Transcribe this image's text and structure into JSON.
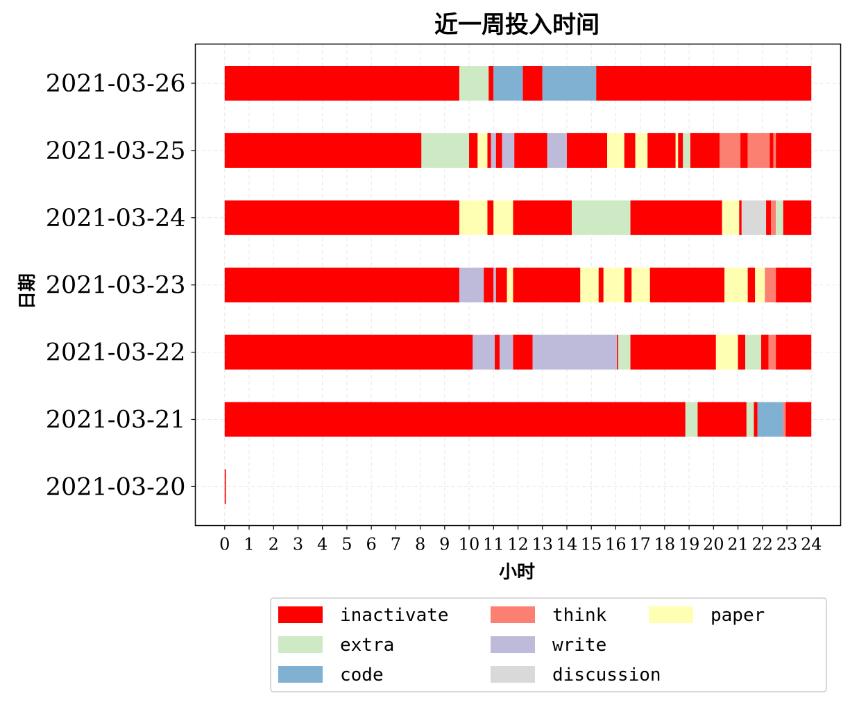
{
  "chart_data": {
    "type": "bar",
    "orientation": "horizontal-stacked-timeline",
    "title": "近一周投入时间",
    "xlabel": "小时",
    "ylabel": "日期",
    "xlim": [
      -1.2,
      25.2
    ],
    "xticks": [
      0,
      1,
      2,
      3,
      4,
      5,
      6,
      7,
      8,
      9,
      10,
      11,
      12,
      13,
      14,
      15,
      16,
      17,
      18,
      19,
      20,
      21,
      22,
      23,
      24
    ],
    "grid": true,
    "legend_position": "bottom",
    "legend": [
      {
        "name": "inactivate",
        "color": "#ff0000"
      },
      {
        "name": "extra",
        "color": "#cdeac5"
      },
      {
        "name": "code",
        "color": "#80b1d3"
      },
      {
        "name": "think",
        "color": "#fb8072"
      },
      {
        "name": "write",
        "color": "#bebada"
      },
      {
        "name": "discussion",
        "color": "#d9d9d9"
      },
      {
        "name": "paper",
        "color": "#ffffb3"
      }
    ],
    "categories": [
      "2021-03-26",
      "2021-03-25",
      "2021-03-24",
      "2021-03-23",
      "2021-03-22",
      "2021-03-21",
      "2021-03-20"
    ],
    "rows": [
      {
        "date": "2021-03-26",
        "segments": [
          {
            "type": "inactivate",
            "start": 0,
            "end": 9.6
          },
          {
            "type": "extra",
            "start": 9.6,
            "end": 10.8
          },
          {
            "type": "inactivate",
            "start": 10.8,
            "end": 11.0
          },
          {
            "type": "code",
            "start": 11.0,
            "end": 12.2
          },
          {
            "type": "inactivate",
            "start": 12.2,
            "end": 13.0
          },
          {
            "type": "code",
            "start": 13.0,
            "end": 15.2
          },
          {
            "type": "inactivate",
            "start": 15.2,
            "end": 24.0
          }
        ]
      },
      {
        "date": "2021-03-25",
        "segments": [
          {
            "type": "inactivate",
            "start": 0,
            "end": 8.05
          },
          {
            "type": "extra",
            "start": 8.05,
            "end": 10.0
          },
          {
            "type": "inactivate",
            "start": 10.0,
            "end": 10.35
          },
          {
            "type": "paper",
            "start": 10.35,
            "end": 10.75
          },
          {
            "type": "inactivate",
            "start": 10.75,
            "end": 10.9
          },
          {
            "type": "write",
            "start": 10.9,
            "end": 11.1
          },
          {
            "type": "inactivate",
            "start": 11.1,
            "end": 11.35
          },
          {
            "type": "write",
            "start": 11.35,
            "end": 11.85
          },
          {
            "type": "inactivate",
            "start": 11.85,
            "end": 13.2
          },
          {
            "type": "write",
            "start": 13.2,
            "end": 14.0
          },
          {
            "type": "inactivate",
            "start": 14.0,
            "end": 15.65
          },
          {
            "type": "paper",
            "start": 15.65,
            "end": 16.35
          },
          {
            "type": "inactivate",
            "start": 16.35,
            "end": 16.8
          },
          {
            "type": "paper",
            "start": 16.8,
            "end": 17.3
          },
          {
            "type": "inactivate",
            "start": 17.3,
            "end": 18.45
          },
          {
            "type": "paper",
            "start": 18.45,
            "end": 18.55
          },
          {
            "type": "inactivate",
            "start": 18.55,
            "end": 18.75
          },
          {
            "type": "extra",
            "start": 18.75,
            "end": 19.05
          },
          {
            "type": "inactivate",
            "start": 19.05,
            "end": 20.25
          },
          {
            "type": "think",
            "start": 20.25,
            "end": 21.1
          },
          {
            "type": "inactivate",
            "start": 21.1,
            "end": 21.4
          },
          {
            "type": "think",
            "start": 21.4,
            "end": 22.3
          },
          {
            "type": "inactivate",
            "start": 22.3,
            "end": 22.45
          },
          {
            "type": "think",
            "start": 22.45,
            "end": 22.55
          },
          {
            "type": "inactivate",
            "start": 22.55,
            "end": 24.0
          }
        ]
      },
      {
        "date": "2021-03-24",
        "segments": [
          {
            "type": "inactivate",
            "start": 0,
            "end": 9.6
          },
          {
            "type": "paper",
            "start": 9.6,
            "end": 10.75
          },
          {
            "type": "inactivate",
            "start": 10.75,
            "end": 11.0
          },
          {
            "type": "paper",
            "start": 11.0,
            "end": 11.8
          },
          {
            "type": "inactivate",
            "start": 11.8,
            "end": 14.2
          },
          {
            "type": "extra",
            "start": 14.2,
            "end": 16.6
          },
          {
            "type": "inactivate",
            "start": 16.6,
            "end": 20.35
          },
          {
            "type": "paper",
            "start": 20.35,
            "end": 21.05
          },
          {
            "type": "inactivate",
            "start": 21.05,
            "end": 21.15
          },
          {
            "type": "discussion",
            "start": 21.15,
            "end": 22.15
          },
          {
            "type": "inactivate",
            "start": 22.15,
            "end": 22.35
          },
          {
            "type": "think",
            "start": 22.35,
            "end": 22.55
          },
          {
            "type": "extra",
            "start": 22.55,
            "end": 22.85
          },
          {
            "type": "inactivate",
            "start": 22.85,
            "end": 24.0
          }
        ]
      },
      {
        "date": "2021-03-23",
        "segments": [
          {
            "type": "inactivate",
            "start": 0,
            "end": 9.6
          },
          {
            "type": "write",
            "start": 9.6,
            "end": 10.6
          },
          {
            "type": "inactivate",
            "start": 10.6,
            "end": 11.0
          },
          {
            "type": "write",
            "start": 11.0,
            "end": 11.1
          },
          {
            "type": "inactivate",
            "start": 11.1,
            "end": 11.55
          },
          {
            "type": "paper",
            "start": 11.55,
            "end": 11.8
          },
          {
            "type": "inactivate",
            "start": 11.8,
            "end": 14.55
          },
          {
            "type": "paper",
            "start": 14.55,
            "end": 15.3
          },
          {
            "type": "inactivate",
            "start": 15.3,
            "end": 15.5
          },
          {
            "type": "paper",
            "start": 15.5,
            "end": 16.35
          },
          {
            "type": "inactivate",
            "start": 16.35,
            "end": 16.65
          },
          {
            "type": "paper",
            "start": 16.65,
            "end": 17.4
          },
          {
            "type": "inactivate",
            "start": 17.4,
            "end": 20.45
          },
          {
            "type": "paper",
            "start": 20.45,
            "end": 21.4
          },
          {
            "type": "inactivate",
            "start": 21.4,
            "end": 21.7
          },
          {
            "type": "paper",
            "start": 21.7,
            "end": 22.1
          },
          {
            "type": "think",
            "start": 22.1,
            "end": 22.55
          },
          {
            "type": "inactivate",
            "start": 22.55,
            "end": 24.0
          }
        ]
      },
      {
        "date": "2021-03-22",
        "segments": [
          {
            "type": "inactivate",
            "start": 0,
            "end": 10.15
          },
          {
            "type": "write",
            "start": 10.15,
            "end": 11.05
          },
          {
            "type": "inactivate",
            "start": 11.05,
            "end": 11.25
          },
          {
            "type": "write",
            "start": 11.25,
            "end": 11.8
          },
          {
            "type": "inactivate",
            "start": 11.8,
            "end": 12.6
          },
          {
            "type": "write",
            "start": 12.6,
            "end": 16.05
          },
          {
            "type": "inactivate",
            "start": 16.05,
            "end": 16.1
          },
          {
            "type": "extra",
            "start": 16.1,
            "end": 16.6
          },
          {
            "type": "inactivate",
            "start": 16.6,
            "end": 20.1
          },
          {
            "type": "paper",
            "start": 20.1,
            "end": 21.0
          },
          {
            "type": "inactivate",
            "start": 21.0,
            "end": 21.3
          },
          {
            "type": "extra",
            "start": 21.3,
            "end": 21.95
          },
          {
            "type": "inactivate",
            "start": 21.95,
            "end": 22.25
          },
          {
            "type": "think",
            "start": 22.25,
            "end": 22.55
          },
          {
            "type": "inactivate",
            "start": 22.55,
            "end": 24.0
          }
        ]
      },
      {
        "date": "2021-03-21",
        "segments": [
          {
            "type": "inactivate",
            "start": 0,
            "end": 18.85
          },
          {
            "type": "extra",
            "start": 18.85,
            "end": 19.35
          },
          {
            "type": "inactivate",
            "start": 19.35,
            "end": 21.35
          },
          {
            "type": "extra",
            "start": 21.35,
            "end": 21.65
          },
          {
            "type": "inactivate",
            "start": 21.65,
            "end": 21.8
          },
          {
            "type": "code",
            "start": 21.8,
            "end": 22.85
          },
          {
            "type": "think",
            "start": 22.85,
            "end": 22.95
          },
          {
            "type": "inactivate",
            "start": 22.95,
            "end": 24.0
          }
        ]
      },
      {
        "date": "2021-03-20",
        "segments": [
          {
            "type": "inactivate",
            "start": 0,
            "end": 0.05
          }
        ]
      }
    ]
  }
}
